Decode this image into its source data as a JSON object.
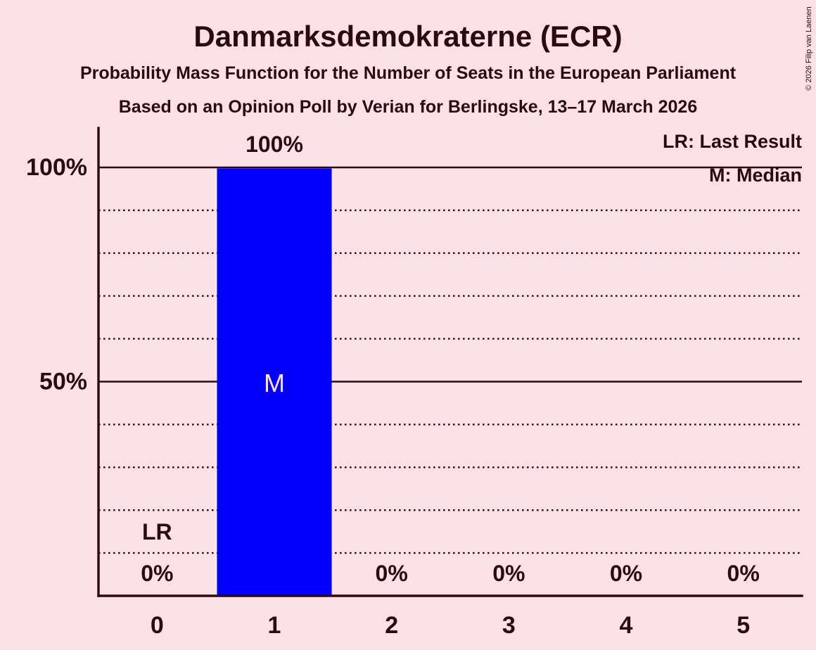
{
  "page": {
    "background_color": "#FCE1E8",
    "text_color": "#2B0A13",
    "copyright": "© 2026 Filip van Laenen"
  },
  "header": {
    "title": "Danmarksdemokraterne (ECR)",
    "subtitle1": "Probability Mass Function for the Number of Seats in the European Parliament",
    "subtitle2": "Based on an Opinion Poll by Verian for Berlingske, 13–17 March 2026"
  },
  "legend": {
    "lr": "LR: Last Result",
    "m": "M: Median"
  },
  "chart_data": {
    "type": "bar",
    "categories": [
      "0",
      "1",
      "2",
      "3",
      "4",
      "5"
    ],
    "values": [
      0,
      100,
      0,
      0,
      0,
      0
    ],
    "value_labels": [
      "0%",
      "100%",
      "0%",
      "0%",
      "0%",
      "0%"
    ],
    "title": "Probability Mass Function for the Number of Seats in the European Parliament",
    "xlabel": "",
    "ylabel": "",
    "ylim": [
      0,
      100
    ],
    "y_ticks": [
      {
        "value": 100,
        "label": "100%"
      },
      {
        "value": 50,
        "label": "50%"
      }
    ],
    "gridlines": {
      "solid": [
        100,
        50
      ],
      "dotted": [
        90,
        80,
        70,
        60,
        40,
        30,
        20,
        10
      ]
    },
    "legend_position": "top-right",
    "bar_color": "#0000FB",
    "median_label_color": "#FCE1E8",
    "line_color": "#2B0A13",
    "median_index": 1,
    "median_marker": "M",
    "last_result_index": 0,
    "last_result_marker": "LR"
  }
}
